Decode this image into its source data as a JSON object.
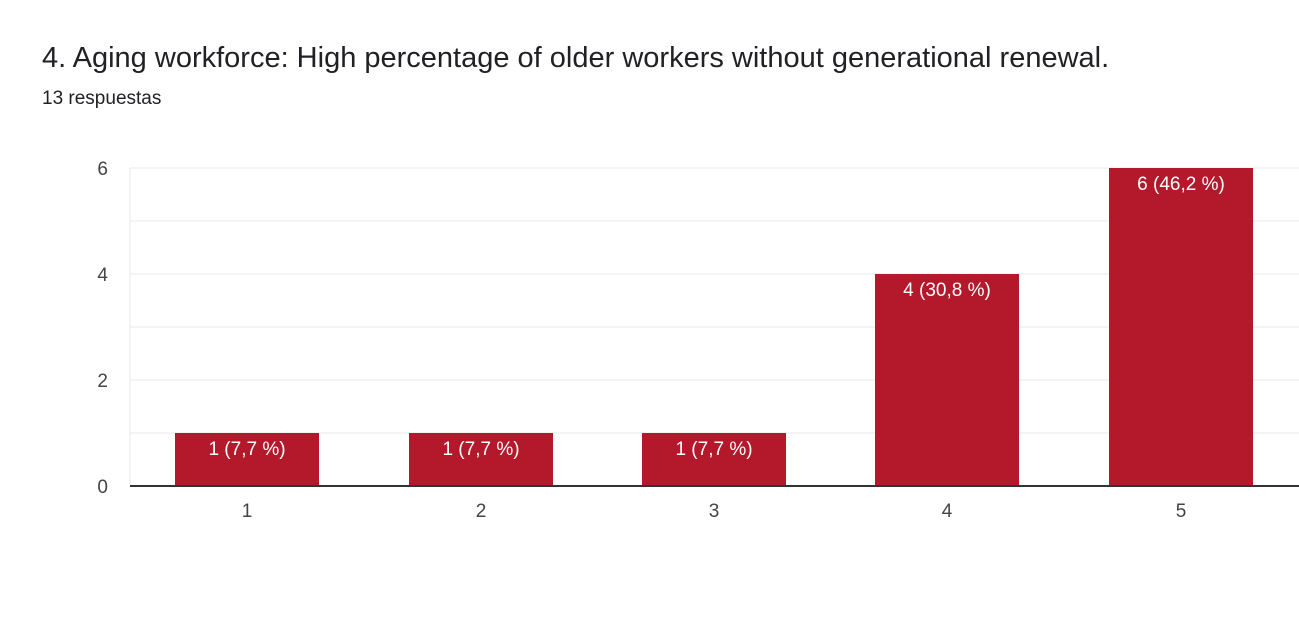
{
  "question": {
    "title": "4. Aging workforce: High percentage of older workers without generational renewal.",
    "responses": "13 respuestas"
  },
  "colors": {
    "bar": "#b3192b",
    "grid": "#e8e8e8",
    "axis": "#333333"
  },
  "chart_data": {
    "type": "bar",
    "title": "4. Aging workforce: High percentage of older workers without generational renewal.",
    "xlabel": "",
    "ylabel": "",
    "categories": [
      "1",
      "2",
      "3",
      "4",
      "5"
    ],
    "values": [
      1,
      1,
      1,
      4,
      6
    ],
    "data_labels": [
      "1 (7,7 %)",
      "1 (7,7 %)",
      "1 (7,7 %)",
      "4 (30,8 %)",
      "6 (46,2 %)"
    ],
    "ylim": [
      0,
      6
    ],
    "yticks": [
      0,
      2,
      4,
      6
    ],
    "grid": true,
    "legend": "none"
  }
}
